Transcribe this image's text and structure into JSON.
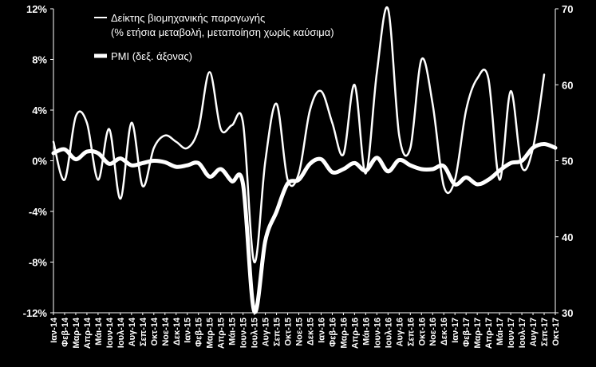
{
  "chart_data": {
    "type": "line",
    "x": [
      "Ιαν-14",
      "Φεβ-14",
      "Μαρ-14",
      "Απρ-14",
      "Μάι-14",
      "Ιουν-14",
      "Ιουλ-14",
      "Αυγ-14",
      "Σεπ-14",
      "Οκτ-14",
      "Νοε-14",
      "Δεκ-14",
      "Ιαν-15",
      "Φεβ-15",
      "Μαρ-15",
      "Απρ-15",
      "Μάι-15",
      "Ιουν-15",
      "Ιουλ-15",
      "Αυγ-15",
      "Σεπ-15",
      "Οκτ-15",
      "Νοε-15",
      "Δεκ-15",
      "Ιαν-16",
      "Φεβ-16",
      "Μαρ-16",
      "Απρ-16",
      "Μάι-16",
      "Ιουν-16",
      "Ιουλ-16",
      "Αυγ-16",
      "Σεπ-16",
      "Οκτ-16",
      "Νοε-16",
      "Δεκ-16",
      "Ιαν-17",
      "Φεβ-17",
      "Μαρ-17",
      "Απρ-17",
      "Μάι-17",
      "Ιουν-17",
      "Ιουλ-17",
      "Αυγ-17",
      "Σεπ-17",
      "Οκτ-17"
    ],
    "x_tick_labels": [
      "Ιαν-14",
      "Φεβ-14",
      "Μαρ-14",
      "Απρ-14",
      "Μάι-14",
      "Ιουν-14",
      "Ιουλ-14",
      "Αυγ-14",
      "Σεπ-14",
      "Οκτ-14",
      "Νοε-14",
      "Δεκ-14",
      "Ιαν-15",
      "Φεβ-15",
      "Μαρ-15",
      "Απρ-15",
      "Μάι-15",
      "Ιουν-15",
      "Ιουλ-15",
      "Αυγ-15",
      "Σεπ-15",
      "Οκτ-15",
      "Νοε-15",
      "Δεκ-15",
      "Ιαν-16",
      "Φεβ-16",
      "Μαρ-16",
      "Απρ-16",
      "Μάι-16",
      "Ιουν-16",
      "Ιουλ-16",
      "Αυγ-16",
      "Σεπ-16",
      "Οκτ-16",
      "Νοε-16",
      "Δεκ-16",
      "Ιαν-17",
      "Φεβ-17",
      "Μαρ-17",
      "Απρ-17",
      "Μάι-17",
      "Ιουν-17",
      "Ιουλ-17",
      "Αυγ-17",
      "Σεπ-17",
      "Οκτ-17"
    ],
    "series": [
      {
        "name": "Δείκτης βιομηχανικής παραγωγής\n(% ετήσια μεταβολή, μεταποίηση χωρίς καύσιμα)",
        "axis": "left",
        "values": [
          1.5,
          -1.5,
          3.5,
          3.0,
          -1.5,
          2.5,
          -3.0,
          3.0,
          -2.0,
          1.0,
          2.0,
          1.5,
          1.0,
          2.5,
          7.0,
          2.5,
          2.8,
          3.0,
          -8.0,
          0.0,
          4.5,
          -1.5,
          -1.0,
          4.0,
          5.5,
          3.0,
          0.5,
          6.0,
          -1.0,
          7.0,
          12.0,
          2.0,
          1.0,
          8.0,
          4.5,
          -2.0,
          -1.5,
          4.0,
          6.5,
          6.5,
          -1.5,
          5.5,
          -0.5,
          1.0,
          6.8,
          null
        ]
      },
      {
        "name": "PMI (δεξ. άξονας)",
        "axis": "right",
        "values": [
          51.0,
          51.5,
          50.2,
          51.2,
          51.0,
          49.6,
          50.3,
          49.4,
          49.7,
          50.0,
          49.8,
          49.2,
          49.4,
          49.7,
          47.9,
          48.9,
          47.3,
          46.9,
          30.2,
          39.5,
          43.3,
          47.0,
          47.5,
          49.6,
          50.2,
          48.5,
          48.9,
          49.7,
          48.7,
          50.4,
          48.6,
          50.1,
          49.4,
          48.9,
          48.9,
          49.3,
          46.9,
          47.8,
          46.9,
          47.5,
          48.7,
          49.7,
          50.0,
          51.7,
          52.2,
          51.7
        ]
      }
    ],
    "yaxis_left": {
      "min": -12,
      "max": 12,
      "ticks": [
        "12%",
        "8%",
        "4%",
        "0%",
        "-4%",
        "-8%",
        "-12%"
      ]
    },
    "yaxis_right": {
      "min": 30,
      "max": 70,
      "ticks": [
        "70",
        "60",
        "50",
        "40",
        "30"
      ]
    },
    "grid": false,
    "legend_position": "top-left",
    "colors": {
      "background": "#000000",
      "lines": "#ffffff",
      "text": "#ffffff"
    }
  }
}
